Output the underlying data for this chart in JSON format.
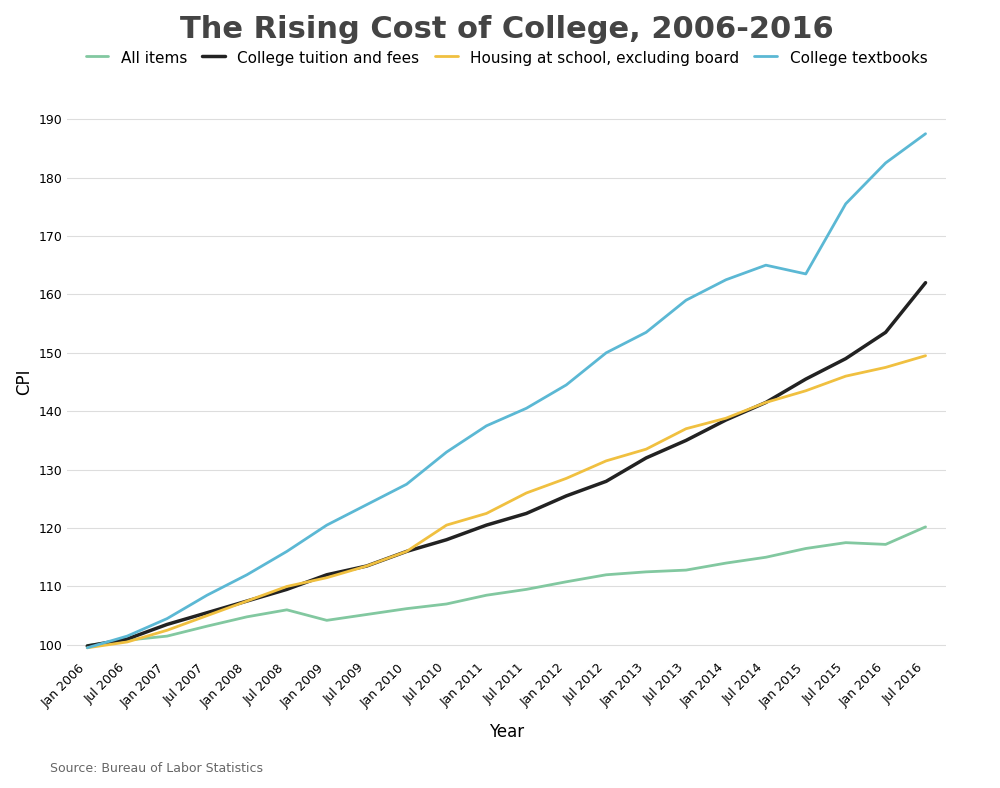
{
  "title": "The Rising Cost of College, 2006-2016",
  "xlabel": "Year",
  "ylabel": "CPI",
  "source": "Source: Bureau of Labor Statistics",
  "ylim": [
    98,
    192
  ],
  "yticks": [
    100,
    110,
    120,
    130,
    140,
    150,
    160,
    170,
    180,
    190
  ],
  "tick_labels": [
    "Jan 2006",
    "Jul 2006",
    "Jan 2007",
    "Jul 2007",
    "Jan 2008",
    "Jul 2008",
    "Jan 2009",
    "Jul 2009",
    "Jan 2010",
    "Jul 2010",
    "Jan 2011",
    "Jul 2011",
    "Jan 2012",
    "Jul 2012",
    "Jan 2013",
    "Jul 2013",
    "Jan 2014",
    "Jul 2014",
    "Jan 2015",
    "Jul 2015",
    "Jan 2016",
    "Jul 2016"
  ],
  "series": {
    "All items": {
      "color": "#82C8A0",
      "linewidth": 2.0,
      "values": [
        99.9,
        100.8,
        101.5,
        103.2,
        104.8,
        106.0,
        104.2,
        105.2,
        106.2,
        107.0,
        108.5,
        109.5,
        110.8,
        112.0,
        112.5,
        112.8,
        114.0,
        115.0,
        116.5,
        117.5,
        117.2,
        120.2
      ]
    },
    "College tuition and fees": {
      "color": "#222222",
      "linewidth": 2.5,
      "values": [
        99.8,
        101.0,
        103.5,
        105.5,
        107.5,
        109.5,
        112.0,
        113.5,
        116.0,
        118.0,
        120.5,
        122.5,
        125.5,
        128.0,
        132.0,
        135.0,
        138.5,
        141.5,
        145.5,
        149.0,
        153.5,
        162.0
      ]
    },
    "Housing at school, excluding board": {
      "color": "#F0C040",
      "linewidth": 2.0,
      "values": [
        99.5,
        100.5,
        102.5,
        105.0,
        107.5,
        110.0,
        111.5,
        113.5,
        116.0,
        120.5,
        122.5,
        126.0,
        128.5,
        131.5,
        133.5,
        137.0,
        138.8,
        141.5,
        143.5,
        146.0,
        147.5,
        149.5
      ]
    },
    "College textbooks": {
      "color": "#5BB8D4",
      "linewidth": 2.0,
      "values": [
        99.5,
        101.5,
        104.5,
        108.5,
        112.0,
        116.0,
        120.5,
        124.0,
        127.5,
        133.0,
        137.5,
        140.5,
        144.5,
        150.0,
        153.5,
        159.0,
        162.5,
        165.0,
        163.5,
        175.5,
        182.5,
        187.5
      ]
    }
  },
  "legend_order": [
    "All items",
    "College tuition and fees",
    "Housing at school, excluding board",
    "College textbooks"
  ],
  "background_color": "#ffffff",
  "grid_color": "#dddddd",
  "title_fontsize": 22,
  "axis_label_fontsize": 12,
  "tick_fontsize": 9,
  "legend_fontsize": 11
}
